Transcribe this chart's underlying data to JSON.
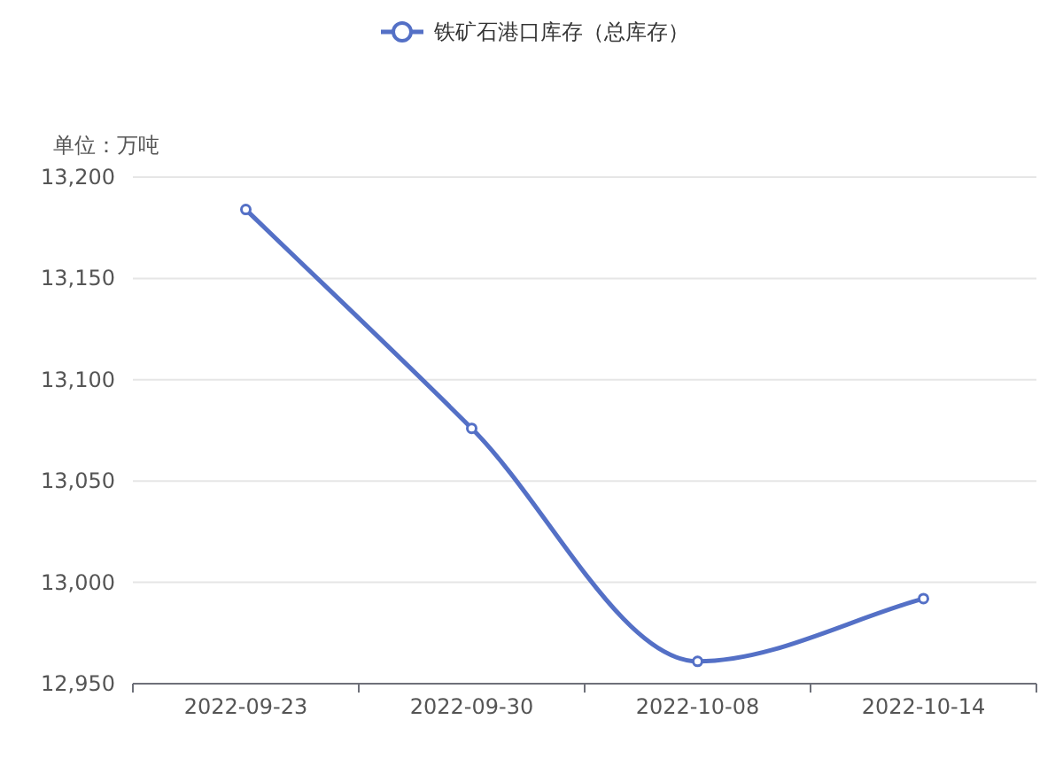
{
  "chart_data": {
    "type": "line",
    "ylabel": "单位：万吨",
    "categories": [
      "2022-09-23",
      "2022-09-30",
      "2022-10-08",
      "2022-10-14"
    ],
    "series": [
      {
        "name": "铁矿石港口库存（总库存）",
        "color": "#5470c6",
        "values": [
          13184,
          13076,
          12961,
          12992
        ]
      }
    ],
    "ylim": [
      12950,
      13200
    ],
    "yticks": [
      {
        "value": 12950,
        "label": "12,950"
      },
      {
        "value": 13000,
        "label": "13,000"
      },
      {
        "value": 13050,
        "label": "13,050"
      },
      {
        "value": 13100,
        "label": "13,100"
      },
      {
        "value": 13150,
        "label": "13,150"
      },
      {
        "value": 13200,
        "label": "13,200"
      }
    ],
    "grid": "y",
    "legend": "top",
    "marker": "circle",
    "line_style": "solid"
  }
}
